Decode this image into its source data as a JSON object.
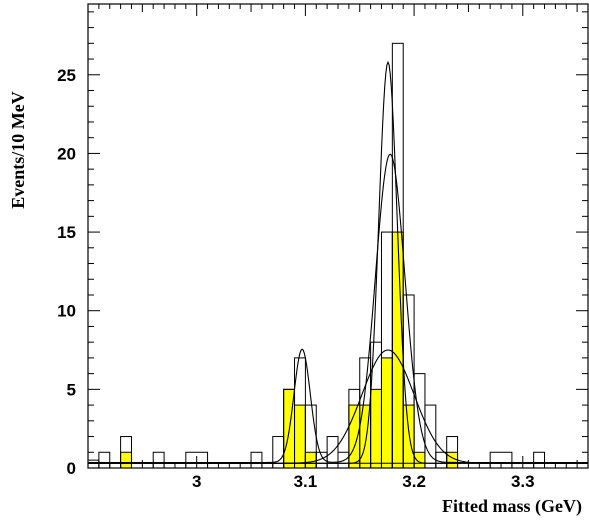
{
  "chart_data": {
    "type": "histogram",
    "title": "",
    "xlabel": "Fitted mass  (GeV)",
    "ylabel": "Events/10 MeV",
    "xlim": [
      2.9,
      3.36
    ],
    "ylim": [
      0,
      29.5
    ],
    "bin_width": 0.01,
    "x_ticks": [
      3,
      3.1,
      3.2,
      3.3
    ],
    "x_tick_labels": [
      "3",
      "3.1",
      "3.2",
      "3.3"
    ],
    "y_ticks": [
      0,
      5,
      10,
      15,
      20,
      25
    ],
    "y_tick_labels": [
      "0",
      "5",
      "10",
      "15",
      "20",
      "25"
    ],
    "grid": false,
    "series": [
      {
        "style": "outline",
        "color": "#000000",
        "bins": [
          {
            "x0": 2.9,
            "x1": 2.91,
            "value": 0.5
          },
          {
            "x0": 2.91,
            "x1": 2.92,
            "value": 1
          },
          {
            "x0": 2.93,
            "x1": 2.94,
            "value": 2
          },
          {
            "x0": 2.96,
            "x1": 2.97,
            "value": 1
          },
          {
            "x0": 2.99,
            "x1": 3.01,
            "value": 1
          },
          {
            "x0": 3.05,
            "x1": 3.06,
            "value": 1
          },
          {
            "x0": 3.07,
            "x1": 3.08,
            "value": 2
          },
          {
            "x0": 3.08,
            "x1": 3.09,
            "value": 5
          },
          {
            "x0": 3.09,
            "x1": 3.1,
            "value": 7
          },
          {
            "x0": 3.1,
            "x1": 3.11,
            "value": 4
          },
          {
            "x0": 3.11,
            "x1": 3.12,
            "value": 1
          },
          {
            "x0": 3.12,
            "x1": 3.13,
            "value": 2
          },
          {
            "x0": 3.13,
            "x1": 3.14,
            "value": 1
          },
          {
            "x0": 3.14,
            "x1": 3.15,
            "value": 5
          },
          {
            "x0": 3.15,
            "x1": 3.16,
            "value": 7
          },
          {
            "x0": 3.16,
            "x1": 3.17,
            "value": 8
          },
          {
            "x0": 3.17,
            "x1": 3.18,
            "value": 15
          },
          {
            "x0": 3.18,
            "x1": 3.19,
            "value": 27
          },
          {
            "x0": 3.19,
            "x1": 3.2,
            "value": 11
          },
          {
            "x0": 3.2,
            "x1": 3.21,
            "value": 6
          },
          {
            "x0": 3.21,
            "x1": 3.22,
            "value": 4
          },
          {
            "x0": 3.22,
            "x1": 3.23,
            "value": 1
          },
          {
            "x0": 3.23,
            "x1": 3.24,
            "value": 2
          },
          {
            "x0": 3.27,
            "x1": 3.29,
            "value": 1
          },
          {
            "x0": 3.31,
            "x1": 3.32,
            "value": 1
          }
        ]
      },
      {
        "style": "filled",
        "color": "#ffff00",
        "bins": [
          {
            "x0": 2.93,
            "x1": 2.94,
            "value": 1
          },
          {
            "x0": 3.08,
            "x1": 3.09,
            "value": 5
          },
          {
            "x0": 3.09,
            "x1": 3.1,
            "value": 4
          },
          {
            "x0": 3.1,
            "x1": 3.11,
            "value": 1
          },
          {
            "x0": 3.14,
            "x1": 3.16,
            "value": 4
          },
          {
            "x0": 3.16,
            "x1": 3.17,
            "value": 5
          },
          {
            "x0": 3.17,
            "x1": 3.18,
            "value": 7
          },
          {
            "x0": 3.18,
            "x1": 3.19,
            "value": 15
          },
          {
            "x0": 3.19,
            "x1": 3.2,
            "value": 4
          },
          {
            "x0": 3.2,
            "x1": 3.21,
            "value": 1
          },
          {
            "x0": 3.23,
            "x1": 3.24,
            "value": 1
          }
        ]
      }
    ],
    "fit_curves": [
      {
        "name_hidden": true,
        "background": 0.35,
        "peaks": [
          {
            "mean": 3.097,
            "sigma": 0.0075,
            "amplitude": 7.2
          },
          {
            "mean": 3.178,
            "sigma": 0.0135,
            "amplitude": 19.6
          }
        ]
      },
      {
        "background": 0.3,
        "peaks": [
          {
            "mean": 3.176,
            "sigma": 0.0085,
            "amplitude": 25.5
          }
        ]
      },
      {
        "background": 0.3,
        "peaks": [
          {
            "mean": 3.176,
            "sigma": 0.024,
            "amplitude": 7.2
          }
        ]
      }
    ]
  }
}
